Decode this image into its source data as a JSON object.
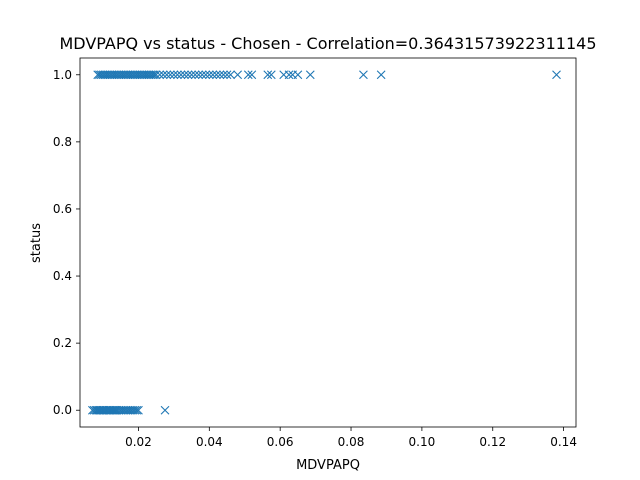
{
  "chart_data": {
    "type": "scatter",
    "title": "MDVPAPQ vs status - Chosen - Correlation=0.36431573922311145",
    "xlabel": "MDVPAPQ",
    "ylabel": "status",
    "xlim": [
      0.0035,
      0.1435
    ],
    "ylim": [
      -0.05,
      1.05
    ],
    "xticks": [
      {
        "value": 0.02,
        "label": "0.02"
      },
      {
        "value": 0.04,
        "label": "0.04"
      },
      {
        "value": 0.06,
        "label": "0.06"
      },
      {
        "value": 0.08,
        "label": "0.08"
      },
      {
        "value": 0.1,
        "label": "0.10"
      },
      {
        "value": 0.12,
        "label": "0.12"
      },
      {
        "value": 0.14,
        "label": "0.14"
      }
    ],
    "yticks": [
      {
        "value": 0.0,
        "label": "0.0"
      },
      {
        "value": 0.2,
        "label": "0.2"
      },
      {
        "value": 0.4,
        "label": "0.4"
      },
      {
        "value": 0.6,
        "label": "0.6"
      },
      {
        "value": 0.8,
        "label": "0.8"
      },
      {
        "value": 1.0,
        "label": "1.0"
      }
    ],
    "marker": "x",
    "grid": false,
    "color": "#1f77b4",
    "series": [
      {
        "x": [
          0.007,
          0.0075,
          0.008,
          0.0083,
          0.0087,
          0.009,
          0.0093,
          0.0097,
          0.01,
          0.0103,
          0.0107,
          0.011,
          0.0113,
          0.0117,
          0.012,
          0.0123,
          0.0127,
          0.013,
          0.0133,
          0.0137,
          0.014,
          0.0145,
          0.015,
          0.0155,
          0.016,
          0.0165,
          0.017,
          0.0175,
          0.018,
          0.0185,
          0.019,
          0.0195,
          0.02,
          0.0275,
          0.0085,
          0.009,
          0.0095,
          0.01,
          0.0105,
          0.011,
          0.0115,
          0.012,
          0.0125,
          0.013,
          0.0135,
          0.014,
          0.0145,
          0.015,
          0.0155,
          0.016,
          0.0165,
          0.017,
          0.0175,
          0.018,
          0.0185,
          0.019,
          0.0195,
          0.02,
          0.0205,
          0.021,
          0.0215,
          0.022,
          0.0225,
          0.023,
          0.0235,
          0.024,
          0.0245,
          0.025,
          0.026,
          0.027,
          0.028,
          0.029,
          0.03,
          0.031,
          0.032,
          0.033,
          0.034,
          0.035,
          0.036,
          0.037,
          0.038,
          0.039,
          0.04,
          0.041,
          0.042,
          0.043,
          0.044,
          0.045,
          0.046,
          0.048,
          0.051,
          0.052,
          0.0565,
          0.0575,
          0.061,
          0.0625,
          0.0635,
          0.065,
          0.0685,
          0.0835,
          0.0885,
          0.138
        ],
        "y": [
          0,
          0,
          0,
          0,
          0,
          0,
          0,
          0,
          0,
          0,
          0,
          0,
          0,
          0,
          0,
          0,
          0,
          0,
          0,
          0,
          0,
          0,
          0,
          0,
          0,
          0,
          0,
          0,
          0,
          0,
          0,
          0,
          0,
          0,
          1,
          1,
          1,
          1,
          1,
          1,
          1,
          1,
          1,
          1,
          1,
          1,
          1,
          1,
          1,
          1,
          1,
          1,
          1,
          1,
          1,
          1,
          1,
          1,
          1,
          1,
          1,
          1,
          1,
          1,
          1,
          1,
          1,
          1,
          1,
          1,
          1,
          1,
          1,
          1,
          1,
          1,
          1,
          1,
          1,
          1,
          1,
          1,
          1,
          1,
          1,
          1,
          1,
          1,
          1,
          1,
          1,
          1,
          1,
          1,
          1,
          1,
          1,
          1,
          1,
          1,
          1,
          1
        ]
      }
    ]
  }
}
